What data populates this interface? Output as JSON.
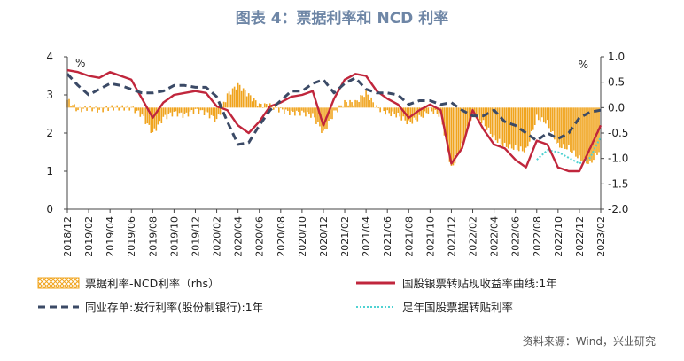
{
  "title": "图表 4：票据利率和 NCD 利率",
  "source": "资料来源：Wind，兴业研究",
  "colors": {
    "title": "#6e86a6",
    "spread": "#f0a41e",
    "bond": "#c0263c",
    "ncd": "#3b4a66",
    "note": "#4fd2d2"
  },
  "chart_data": {
    "type": "line",
    "left_axis": {
      "min": 0,
      "max": 4,
      "ticks": [
        "0",
        "1",
        "2",
        "3",
        "4"
      ],
      "unit": "%"
    },
    "right_axis": {
      "min": -2.0,
      "max": 1.0,
      "ticks": [
        "-2.0",
        "-1.5",
        "-1.0",
        "-0.5",
        "0.0",
        "0.5",
        "1.0"
      ],
      "unit": "%"
    },
    "x_tick_labels": [
      "2018/12",
      "2019/02",
      "2019/04",
      "2019/06",
      "2019/08",
      "2019/10",
      "2019/12",
      "2020/02",
      "2020/04",
      "2020/06",
      "2020/08",
      "2020/10",
      "2020/12",
      "2021/02",
      "2021/04",
      "2021/06",
      "2021/08",
      "2021/10",
      "2021/12",
      "2022/02",
      "2022/04",
      "2022/06",
      "2022/08",
      "2022/10",
      "2022/12",
      "2023/02"
    ],
    "legend": {
      "spread": "票据利率-NCD利率（rhs）",
      "bond": "国股银票转贴现收益率曲线:1年",
      "ncd": "同业存单:发行利率(股份制银行):1年",
      "note": "足年国股票据转贴利率"
    },
    "months": [
      "2018/12",
      "2019/01",
      "2019/02",
      "2019/03",
      "2019/04",
      "2019/05",
      "2019/06",
      "2019/07",
      "2019/08",
      "2019/09",
      "2019/10",
      "2019/11",
      "2019/12",
      "2020/01",
      "2020/02",
      "2020/03",
      "2020/04",
      "2020/05",
      "2020/06",
      "2020/07",
      "2020/08",
      "2020/09",
      "2020/10",
      "2020/11",
      "2020/12",
      "2021/01",
      "2021/02",
      "2021/03",
      "2021/04",
      "2021/05",
      "2021/06",
      "2021/07",
      "2021/08",
      "2021/09",
      "2021/10",
      "2021/11",
      "2021/12",
      "2022/01",
      "2022/02",
      "2022/03",
      "2022/04",
      "2022/05",
      "2022/06",
      "2022/07",
      "2022/08",
      "2022/09",
      "2022/10",
      "2022/11",
      "2022/12",
      "2023/01",
      "2023/02"
    ],
    "series": [
      {
        "key": "ncd",
        "axis": "left",
        "values": [
          3.55,
          3.25,
          3.0,
          3.15,
          3.3,
          3.25,
          3.15,
          3.05,
          3.05,
          3.1,
          3.25,
          3.25,
          3.2,
          3.2,
          2.95,
          2.3,
          1.7,
          1.75,
          2.2,
          2.6,
          2.85,
          3.1,
          3.1,
          3.3,
          3.4,
          3.05,
          3.3,
          3.45,
          3.15,
          3.05,
          3.05,
          3.0,
          2.75,
          2.85,
          2.85,
          2.75,
          2.8,
          2.6,
          2.45,
          2.45,
          2.6,
          2.3,
          2.2,
          2.0,
          1.8,
          2.0,
          1.85,
          2.0,
          2.4,
          2.55,
          2.6
        ]
      },
      {
        "key": "bond",
        "axis": "left",
        "values": [
          3.65,
          3.6,
          3.5,
          3.45,
          3.6,
          3.5,
          3.4,
          2.9,
          2.4,
          2.8,
          3.0,
          3.05,
          3.1,
          3.05,
          2.7,
          2.6,
          2.2,
          2.0,
          2.3,
          2.7,
          2.8,
          2.95,
          3.0,
          3.1,
          2.2,
          2.9,
          3.4,
          3.55,
          3.5,
          3.1,
          2.9,
          2.75,
          2.4,
          2.6,
          2.75,
          2.6,
          1.2,
          1.6,
          2.6,
          2.1,
          1.7,
          1.6,
          1.3,
          1.1,
          1.8,
          1.7,
          1.1,
          1.0,
          1.0,
          1.6,
          2.2
        ]
      },
      {
        "key": "spread",
        "axis": "right",
        "values": [
          0.15,
          -0.05,
          0.0,
          -0.05,
          0.0,
          0.0,
          0.0,
          -0.15,
          -0.5,
          -0.2,
          -0.1,
          -0.15,
          -0.05,
          -0.1,
          -0.25,
          0.25,
          0.45,
          0.25,
          0.05,
          0.05,
          -0.05,
          -0.1,
          -0.1,
          -0.15,
          -0.5,
          -0.1,
          0.1,
          0.1,
          0.3,
          0.0,
          -0.1,
          -0.15,
          -0.3,
          -0.2,
          -0.05,
          -0.15,
          -1.2,
          -0.75,
          -0.1,
          -0.3,
          -0.6,
          -0.75,
          -0.8,
          -0.85,
          -0.2,
          -0.3,
          -0.75,
          -0.8,
          -1.0,
          -1.1,
          -0.8
        ]
      },
      {
        "key": "note",
        "axis": "left",
        "values": [
          null,
          null,
          null,
          null,
          null,
          null,
          null,
          null,
          null,
          null,
          null,
          null,
          null,
          null,
          null,
          null,
          null,
          null,
          null,
          null,
          null,
          null,
          null,
          null,
          null,
          null,
          null,
          null,
          null,
          null,
          null,
          null,
          null,
          null,
          null,
          null,
          null,
          null,
          null,
          null,
          null,
          null,
          null,
          null,
          1.3,
          1.55,
          1.5,
          1.35,
          1.2,
          1.35,
          1.9
        ]
      }
    ]
  }
}
